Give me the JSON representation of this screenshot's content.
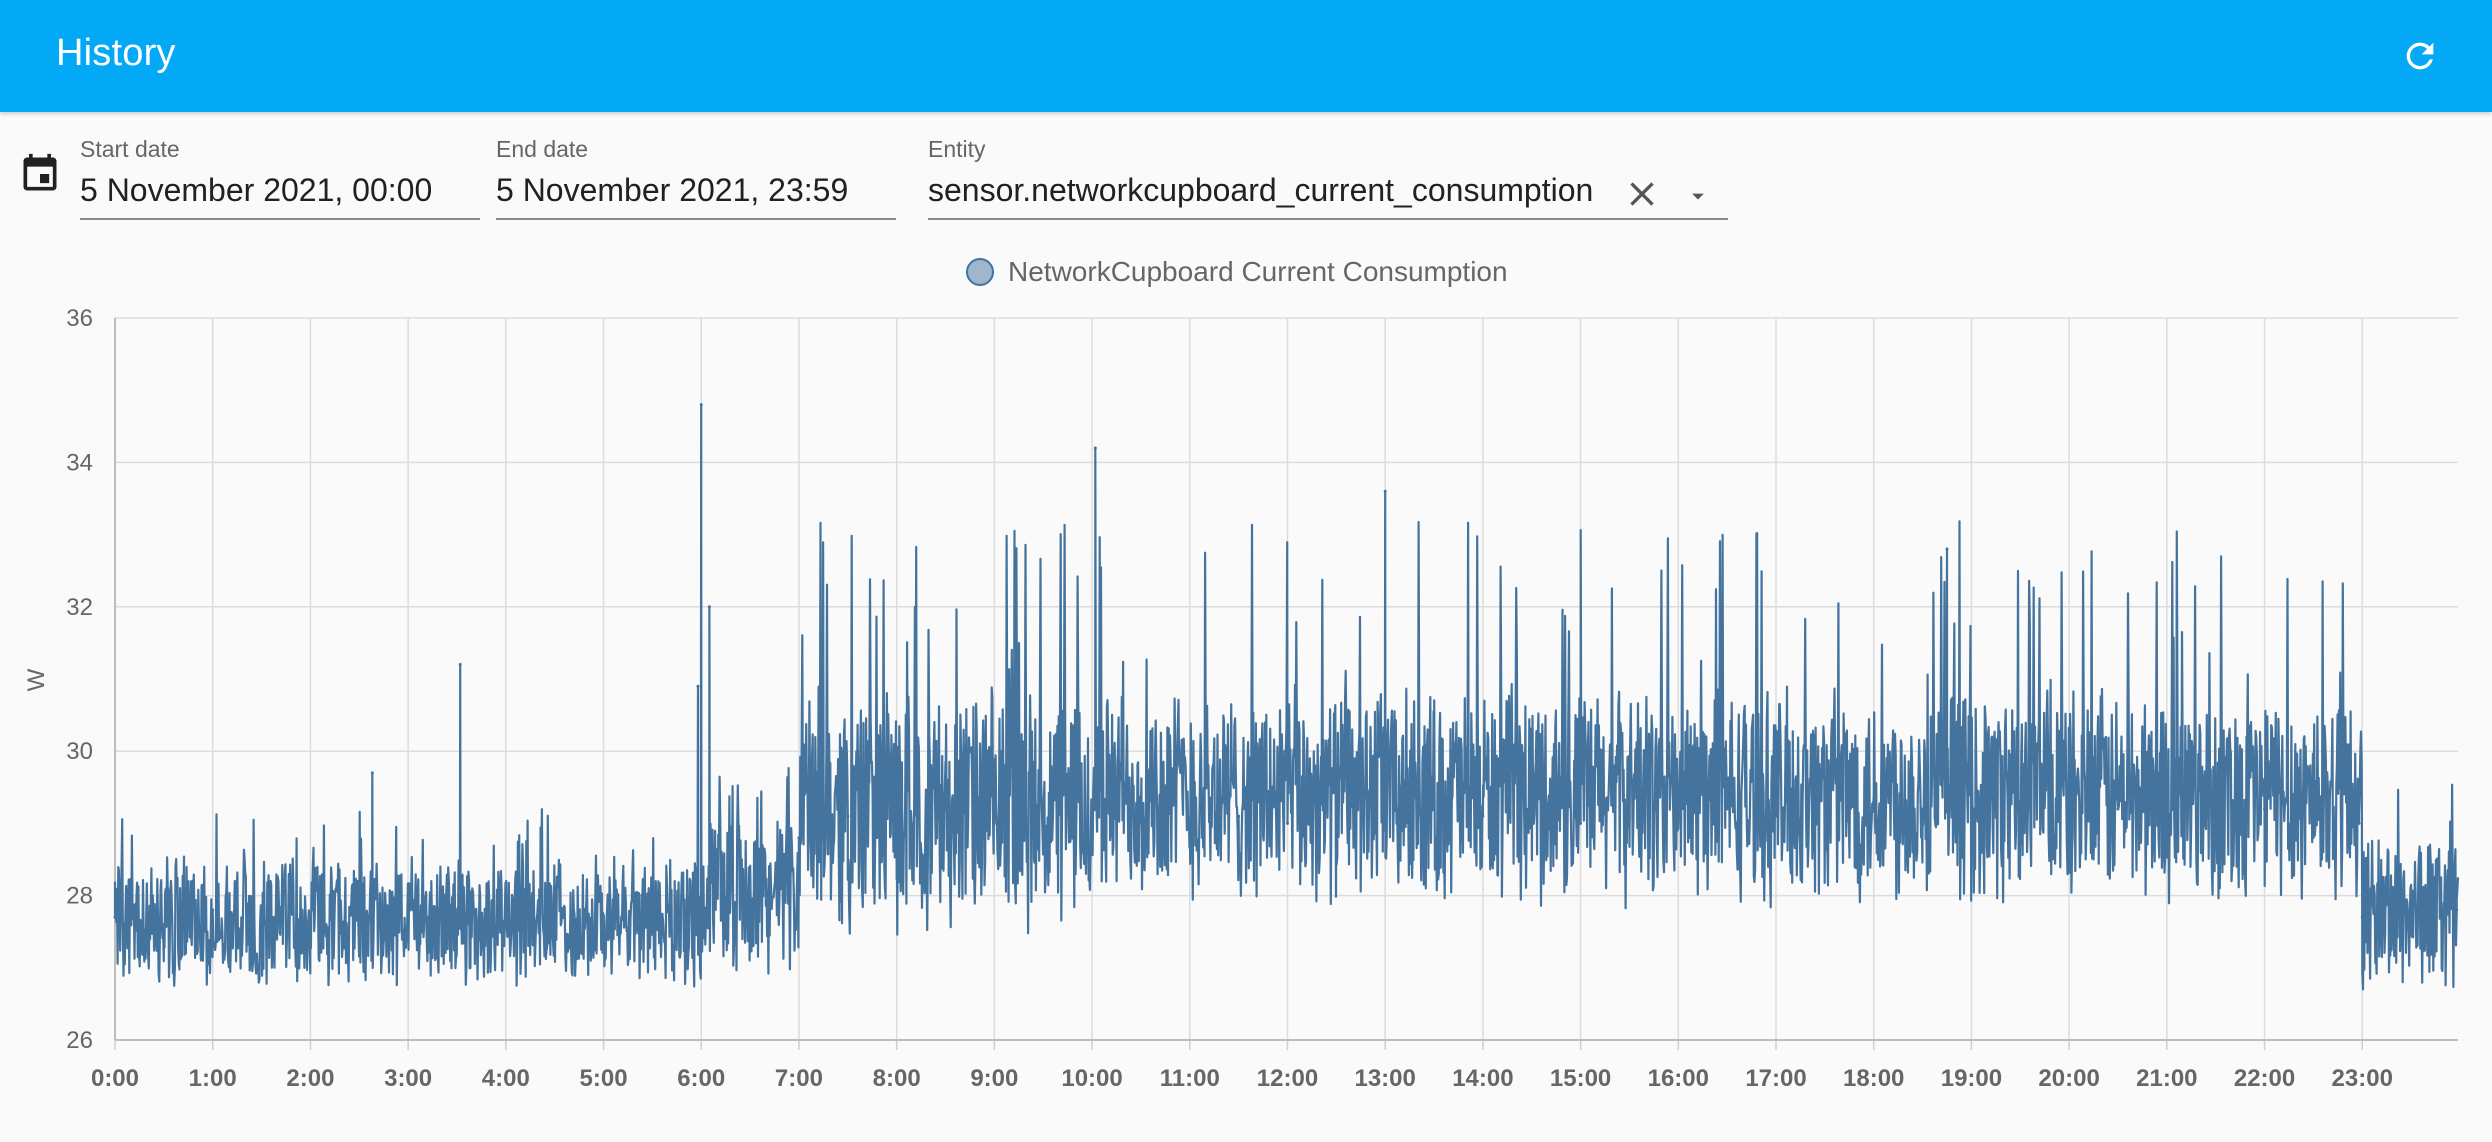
{
  "app_bar": {
    "title": "History",
    "refresh_icon": "refresh-icon",
    "background": "#03a9f4"
  },
  "filters": {
    "calendar_icon": "calendar-icon",
    "start_date": {
      "label": "Start date",
      "value": "5 November 2021, 00:00"
    },
    "end_date": {
      "label": "End date",
      "value": "5 November 2021, 23:59"
    },
    "entity": {
      "label": "Entity",
      "value": "sensor.networkcupboard_current_consumption",
      "clear_icon": "close-icon",
      "dropdown_icon": "arrow-drop-down-icon"
    }
  },
  "chart_data": {
    "type": "line",
    "title": "",
    "xlabel": "",
    "ylabel": "W",
    "ylim": [
      26,
      36
    ],
    "xlim_hours": [
      0,
      23.98
    ],
    "y_ticks": [
      "26",
      "28",
      "30",
      "32",
      "34",
      "36"
    ],
    "x_ticks": [
      "0:00",
      "1:00",
      "2:00",
      "3:00",
      "4:00",
      "5:00",
      "6:00",
      "7:00",
      "8:00",
      "9:00",
      "10:00",
      "11:00",
      "12:00",
      "13:00",
      "14:00",
      "15:00",
      "16:00",
      "17:00",
      "18:00",
      "19:00",
      "20:00",
      "21:00",
      "22:00",
      "23:00"
    ],
    "grid": true,
    "legend_position": "top-center",
    "series": [
      {
        "name": "NetworkCupboard Current Consumption",
        "color": "#44739e",
        "x": [
          "0:00",
          "0:30",
          "1:00",
          "1:30",
          "2:00",
          "2:30",
          "2:38",
          "3:00",
          "3:32",
          "4:00",
          "4:30",
          "5:00",
          "5:30",
          "5:58",
          "6:00",
          "6:05",
          "6:30",
          "7:00",
          "7:30",
          "8:00",
          "8:30",
          "9:00",
          "9:30",
          "10:00",
          "10:02",
          "10:30",
          "11:00",
          "11:30",
          "12:00",
          "12:30",
          "13:00",
          "13:30",
          "14:00",
          "14:30",
          "15:00",
          "15:30",
          "16:00",
          "16:30",
          "17:00",
          "17:30",
          "18:00",
          "18:30",
          "18:45",
          "19:00",
          "19:30",
          "20:00",
          "20:30",
          "21:00",
          "21:30",
          "22:00",
          "22:30",
          "22:58",
          "23:00",
          "23:30",
          "23:58"
        ],
        "values": [
          27.7,
          27.6,
          27.8,
          27.7,
          27.7,
          27.8,
          29.7,
          27.8,
          31.2,
          27.6,
          27.7,
          27.6,
          27.5,
          30.9,
          34.8,
          32.0,
          28.0,
          28.8,
          29.1,
          29.0,
          29.2,
          29.0,
          29.1,
          28.9,
          34.2,
          29.1,
          29.0,
          29.1,
          29.0,
          29.1,
          33.6,
          29.2,
          29.1,
          29.1,
          29.0,
          29.1,
          29.0,
          29.2,
          29.1,
          29.2,
          29.3,
          29.2,
          32.8,
          29.4,
          29.3,
          29.3,
          29.2,
          29.3,
          29.2,
          29.2,
          29.1,
          29.0,
          27.7,
          27.6,
          27.8
        ],
        "noise_range_w": [
          {
            "from": "0:00",
            "to": "6:00",
            "low": 26.7,
            "high": 28.6
          },
          {
            "from": "6:00",
            "to": "7:00",
            "low": 26.9,
            "high": 29.2
          },
          {
            "from": "7:00",
            "to": "10:00",
            "low": 27.4,
            "high": 31.0
          },
          {
            "from": "10:00",
            "to": "23:00",
            "low": 27.8,
            "high": 31.0
          },
          {
            "from": "23:00",
            "to": "23:59",
            "low": 26.6,
            "high": 29.0
          }
        ]
      }
    ]
  }
}
